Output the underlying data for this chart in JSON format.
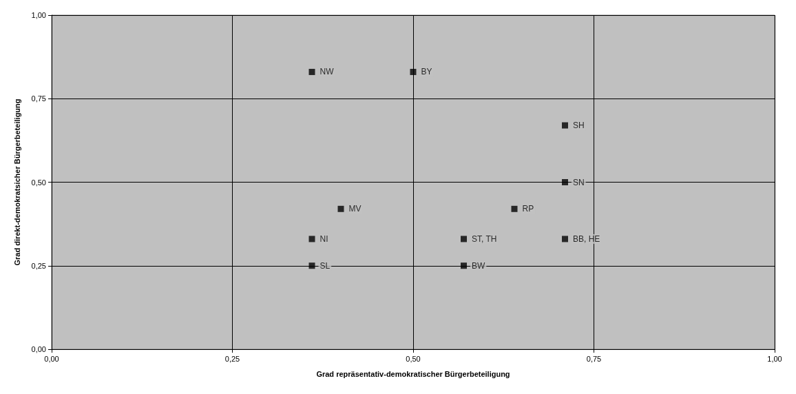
{
  "chart_data": {
    "type": "scatter",
    "xlabel": "Grad repräsentativ-demokratischer Bürgerbeteiligung",
    "ylabel": "Grad direkt-demokratsicher Bürgerbeteiligung",
    "x": [
      0.36,
      0.5,
      0.71,
      0.71,
      0.4,
      0.64,
      0.36,
      0.57,
      0.71,
      0.36,
      0.57
    ],
    "values": [
      0.83,
      0.83,
      0.67,
      0.5,
      0.42,
      0.42,
      0.33,
      0.33,
      0.33,
      0.25,
      0.25
    ],
    "value_labels": [
      "NW",
      "BY",
      "SH",
      "SN",
      "MV",
      "RP",
      "NI",
      "ST, TH",
      "BB, HE",
      "SL",
      "BW"
    ],
    "color": "#000000",
    "marker": "square",
    "xlim": [
      0,
      1
    ],
    "xticks": [
      {
        "value": 0,
        "label": "0,00"
      },
      {
        "value": 0.25,
        "label": "0,25"
      },
      {
        "value": 0.5,
        "label": "0,50"
      },
      {
        "value": 0.75,
        "label": "0,75"
      },
      {
        "value": 1,
        "label": "1,00"
      }
    ],
    "ylim": [
      0,
      1
    ],
    "yticks": [
      {
        "value": 0,
        "label": "0,00"
      },
      {
        "value": 0.25,
        "label": "0,25"
      },
      {
        "value": 0.5,
        "label": "0,50"
      },
      {
        "value": 0.75,
        "label": "0,75"
      },
      {
        "value": 1,
        "label": "1,00"
      }
    ],
    "grid": true
  }
}
